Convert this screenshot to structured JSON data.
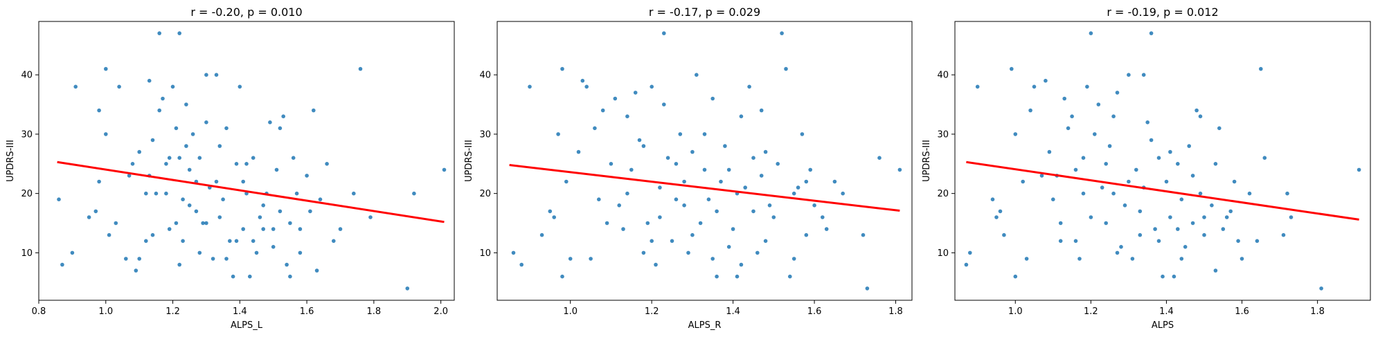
{
  "chart_data": [
    {
      "type": "scatter",
      "title": "r = -0.20, p = 0.010",
      "xlabel": "ALPS_L",
      "ylabel": "UPDRS-III",
      "xlim": [
        0.8,
        2.04
      ],
      "ylim": [
        2,
        49
      ],
      "xticks": [
        "0.8",
        "1.0",
        "1.2",
        "1.4",
        "1.6",
        "1.8",
        "2.0"
      ],
      "yticks": [
        "10",
        "20",
        "30",
        "40"
      ],
      "fit_line": {
        "x": [
          0.855,
          2.01
        ],
        "y": [
          25.3,
          15.2
        ],
        "color": "#ff0000"
      },
      "point_color": "#1f77b4",
      "points": [
        [
          0.86,
          19
        ],
        [
          0.87,
          8
        ],
        [
          0.9,
          10
        ],
        [
          0.91,
          38
        ],
        [
          0.95,
          16
        ],
        [
          0.97,
          17
        ],
        [
          0.98,
          34
        ],
        [
          0.98,
          22
        ],
        [
          1.0,
          41
        ],
        [
          1.0,
          30
        ],
        [
          1.01,
          13
        ],
        [
          1.03,
          15
        ],
        [
          1.04,
          38
        ],
        [
          1.06,
          9
        ],
        [
          1.07,
          23
        ],
        [
          1.08,
          25
        ],
        [
          1.09,
          7
        ],
        [
          1.1,
          9
        ],
        [
          1.1,
          27
        ],
        [
          1.12,
          12
        ],
        [
          1.13,
          23
        ],
        [
          1.13,
          39
        ],
        [
          1.14,
          13
        ],
        [
          1.15,
          20
        ],
        [
          1.16,
          47
        ],
        [
          1.16,
          34
        ],
        [
          1.17,
          36
        ],
        [
          1.18,
          20
        ],
        [
          1.18,
          25
        ],
        [
          1.19,
          14
        ],
        [
          1.2,
          38
        ],
        [
          1.21,
          15
        ],
        [
          1.21,
          31
        ],
        [
          1.22,
          47
        ],
        [
          1.22,
          26
        ],
        [
          1.22,
          8
        ],
        [
          1.23,
          12
        ],
        [
          1.24,
          35
        ],
        [
          1.25,
          18
        ],
        [
          1.25,
          24
        ],
        [
          1.26,
          30
        ],
        [
          1.27,
          17
        ],
        [
          1.28,
          10
        ],
        [
          1.29,
          15
        ],
        [
          1.3,
          40
        ],
        [
          1.3,
          32
        ],
        [
          1.31,
          21
        ],
        [
          1.32,
          9
        ],
        [
          1.33,
          40
        ],
        [
          1.34,
          28
        ],
        [
          1.35,
          19
        ],
        [
          1.36,
          31
        ],
        [
          1.37,
          12
        ],
        [
          1.38,
          6
        ],
        [
          1.39,
          25
        ],
        [
          1.4,
          38
        ],
        [
          1.41,
          14
        ],
        [
          1.42,
          20
        ],
        [
          1.43,
          6
        ],
        [
          1.44,
          26
        ],
        [
          1.45,
          10
        ],
        [
          1.46,
          16
        ],
        [
          1.47,
          14
        ],
        [
          1.48,
          20
        ],
        [
          1.49,
          32
        ],
        [
          1.5,
          11
        ],
        [
          1.51,
          24
        ],
        [
          1.52,
          31
        ],
        [
          1.53,
          33
        ],
        [
          1.54,
          8
        ],
        [
          1.55,
          6
        ],
        [
          1.56,
          26
        ],
        [
          1.57,
          20
        ],
        [
          1.58,
          14
        ],
        [
          1.6,
          23
        ],
        [
          1.61,
          17
        ],
        [
          1.62,
          34
        ],
        [
          1.63,
          7
        ],
        [
          1.64,
          19
        ],
        [
          1.66,
          25
        ],
        [
          1.68,
          12
        ],
        [
          1.7,
          14
        ],
        [
          1.74,
          20
        ],
        [
          1.76,
          41
        ],
        [
          1.79,
          16
        ],
        [
          1.9,
          4
        ],
        [
          1.92,
          20
        ],
        [
          2.01,
          24
        ],
        [
          1.12,
          20
        ],
        [
          1.19,
          26
        ],
        [
          1.24,
          28
        ],
        [
          1.27,
          22
        ],
        [
          1.3,
          15
        ],
        [
          1.33,
          22
        ],
        [
          1.36,
          9
        ],
        [
          1.39,
          12
        ],
        [
          1.41,
          22
        ],
        [
          1.44,
          12
        ],
        [
          1.47,
          18
        ],
        [
          1.5,
          14
        ],
        [
          1.52,
          17
        ],
        [
          1.55,
          15
        ],
        [
          1.58,
          10
        ],
        [
          1.14,
          29
        ],
        [
          1.23,
          19
        ],
        [
          1.28,
          26
        ],
        [
          1.34,
          16
        ],
        [
          1.42,
          25
        ]
      ]
    },
    {
      "type": "scatter",
      "title": "r = -0.17, p = 0.029",
      "xlabel": "ALPS_R",
      "ylabel": "UPDRS-III",
      "xlim": [
        0.82,
        1.84
      ],
      "ylim": [
        2,
        49
      ],
      "xticks": [
        "1.0",
        "1.2",
        "1.4",
        "1.6",
        "1.8"
      ],
      "yticks": [
        "10",
        "20",
        "30",
        "40"
      ],
      "fit_line": {
        "x": [
          0.85,
          1.81
        ],
        "y": [
          24.8,
          17.1
        ],
        "color": "#ff0000"
      },
      "point_color": "#1f77b4",
      "points": [
        [
          0.86,
          10
        ],
        [
          0.88,
          8
        ],
        [
          0.9,
          38
        ],
        [
          0.93,
          13
        ],
        [
          0.95,
          17
        ],
        [
          0.96,
          16
        ],
        [
          0.97,
          30
        ],
        [
          0.98,
          6
        ],
        [
          0.98,
          41
        ],
        [
          0.99,
          22
        ],
        [
          1.0,
          9
        ],
        [
          1.02,
          27
        ],
        [
          1.03,
          39
        ],
        [
          1.04,
          38
        ],
        [
          1.05,
          9
        ],
        [
          1.06,
          31
        ],
        [
          1.08,
          34
        ],
        [
          1.09,
          15
        ],
        [
          1.1,
          25
        ],
        [
          1.11,
          36
        ],
        [
          1.12,
          18
        ],
        [
          1.13,
          14
        ],
        [
          1.14,
          33
        ],
        [
          1.15,
          24
        ],
        [
          1.16,
          37
        ],
        [
          1.17,
          29
        ],
        [
          1.18,
          10
        ],
        [
          1.19,
          15
        ],
        [
          1.2,
          38
        ],
        [
          1.21,
          8
        ],
        [
          1.22,
          21
        ],
        [
          1.23,
          47
        ],
        [
          1.23,
          35
        ],
        [
          1.24,
          26
        ],
        [
          1.25,
          12
        ],
        [
          1.26,
          19
        ],
        [
          1.27,
          30
        ],
        [
          1.28,
          22
        ],
        [
          1.29,
          10
        ],
        [
          1.3,
          27
        ],
        [
          1.31,
          40
        ],
        [
          1.32,
          15
        ],
        [
          1.33,
          24
        ],
        [
          1.34,
          19
        ],
        [
          1.35,
          36
        ],
        [
          1.36,
          6
        ],
        [
          1.37,
          22
        ],
        [
          1.38,
          28
        ],
        [
          1.39,
          11
        ],
        [
          1.4,
          14
        ],
        [
          1.41,
          6
        ],
        [
          1.42,
          33
        ],
        [
          1.43,
          21
        ],
        [
          1.44,
          38
        ],
        [
          1.45,
          17
        ],
        [
          1.46,
          10
        ],
        [
          1.47,
          23
        ],
        [
          1.48,
          27
        ],
        [
          1.49,
          18
        ],
        [
          1.5,
          16
        ],
        [
          1.52,
          47
        ],
        [
          1.53,
          41
        ],
        [
          1.54,
          6
        ],
        [
          1.55,
          9
        ],
        [
          1.56,
          21
        ],
        [
          1.57,
          30
        ],
        [
          1.58,
          13
        ],
        [
          1.59,
          24
        ],
        [
          1.6,
          18
        ],
        [
          1.62,
          16
        ],
        [
          1.63,
          14
        ],
        [
          1.65,
          22
        ],
        [
          1.67,
          20
        ],
        [
          1.72,
          13
        ],
        [
          1.73,
          4
        ],
        [
          1.76,
          26
        ],
        [
          1.81,
          24
        ],
        [
          1.07,
          19
        ],
        [
          1.14,
          20
        ],
        [
          1.18,
          28
        ],
        [
          1.22,
          16
        ],
        [
          1.26,
          25
        ],
        [
          1.3,
          13
        ],
        [
          1.33,
          30
        ],
        [
          1.36,
          17
        ],
        [
          1.39,
          24
        ],
        [
          1.42,
          8
        ],
        [
          1.45,
          26
        ],
        [
          1.48,
          12
        ],
        [
          1.51,
          25
        ],
        [
          1.55,
          20
        ],
        [
          1.58,
          22
        ],
        [
          1.2,
          12
        ],
        [
          1.28,
          18
        ],
        [
          1.35,
          9
        ],
        [
          1.41,
          20
        ],
        [
          1.47,
          34
        ]
      ]
    },
    {
      "type": "scatter",
      "title": "r = -0.19, p = 0.012",
      "xlabel": "ALPS",
      "ylabel": "UPDRS-III",
      "xlim": [
        0.84,
        1.94
      ],
      "ylim": [
        2,
        49
      ],
      "xticks": [
        "1.0",
        "1.2",
        "1.4",
        "1.6",
        "1.8"
      ],
      "yticks": [
        "10",
        "20",
        "30",
        "40"
      ],
      "fit_line": {
        "x": [
          0.87,
          1.91
        ],
        "y": [
          25.3,
          15.6
        ],
        "color": "#ff0000"
      },
      "point_color": "#1f77b4",
      "points": [
        [
          0.87,
          8
        ],
        [
          0.88,
          10
        ],
        [
          0.9,
          38
        ],
        [
          0.94,
          19
        ],
        [
          0.95,
          16
        ],
        [
          0.96,
          17
        ],
        [
          0.97,
          13
        ],
        [
          0.99,
          41
        ],
        [
          1.0,
          30
        ],
        [
          1.0,
          6
        ],
        [
          1.02,
          22
        ],
        [
          1.03,
          9
        ],
        [
          1.04,
          34
        ],
        [
          1.05,
          38
        ],
        [
          1.07,
          23
        ],
        [
          1.08,
          39
        ],
        [
          1.09,
          27
        ],
        [
          1.1,
          19
        ],
        [
          1.11,
          23
        ],
        [
          1.12,
          15
        ],
        [
          1.13,
          36
        ],
        [
          1.14,
          31
        ],
        [
          1.15,
          33
        ],
        [
          1.16,
          12
        ],
        [
          1.17,
          9
        ],
        [
          1.18,
          26
        ],
        [
          1.19,
          38
        ],
        [
          1.2,
          47
        ],
        [
          1.21,
          30
        ],
        [
          1.22,
          35
        ],
        [
          1.23,
          21
        ],
        [
          1.24,
          15
        ],
        [
          1.25,
          28
        ],
        [
          1.26,
          20
        ],
        [
          1.27,
          37
        ],
        [
          1.28,
          11
        ],
        [
          1.29,
          18
        ],
        [
          1.3,
          40
        ],
        [
          1.31,
          9
        ],
        [
          1.32,
          24
        ],
        [
          1.33,
          13
        ],
        [
          1.34,
          40
        ],
        [
          1.35,
          32
        ],
        [
          1.36,
          47
        ],
        [
          1.37,
          14
        ],
        [
          1.38,
          26
        ],
        [
          1.39,
          6
        ],
        [
          1.4,
          22
        ],
        [
          1.41,
          16
        ],
        [
          1.42,
          6
        ],
        [
          1.43,
          25
        ],
        [
          1.44,
          19
        ],
        [
          1.45,
          11
        ],
        [
          1.46,
          28
        ],
        [
          1.47,
          15
        ],
        [
          1.48,
          34
        ],
        [
          1.49,
          20
        ],
        [
          1.5,
          13
        ],
        [
          1.52,
          18
        ],
        [
          1.53,
          7
        ],
        [
          1.54,
          31
        ],
        [
          1.55,
          14
        ],
        [
          1.56,
          16
        ],
        [
          1.58,
          22
        ],
        [
          1.59,
          12
        ],
        [
          1.6,
          9
        ],
        [
          1.62,
          20
        ],
        [
          1.64,
          12
        ],
        [
          1.65,
          41
        ],
        [
          1.66,
          26
        ],
        [
          1.71,
          13
        ],
        [
          1.72,
          20
        ],
        [
          1.73,
          16
        ],
        [
          1.81,
          4
        ],
        [
          1.91,
          24
        ],
        [
          1.12,
          12
        ],
        [
          1.16,
          24
        ],
        [
          1.2,
          16
        ],
        [
          1.24,
          25
        ],
        [
          1.27,
          10
        ],
        [
          1.3,
          22
        ],
        [
          1.33,
          17
        ],
        [
          1.36,
          29
        ],
        [
          1.38,
          12
        ],
        [
          1.41,
          27
        ],
        [
          1.44,
          9
        ],
        [
          1.47,
          23
        ],
        [
          1.5,
          16
        ],
        [
          1.53,
          25
        ],
        [
          1.57,
          17
        ],
        [
          1.18,
          20
        ],
        [
          1.26,
          33
        ],
        [
          1.34,
          21
        ],
        [
          1.43,
          14
        ],
        [
          1.49,
          33
        ]
      ]
    }
  ]
}
